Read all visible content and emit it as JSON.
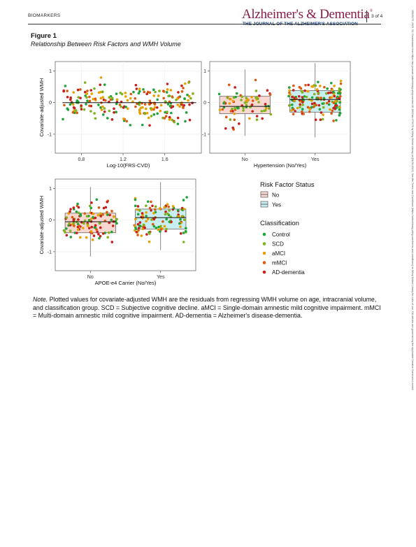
{
  "header": {
    "section": "BIOMARKERS",
    "journal": "Alzheimer's & Dementia",
    "journal_reg": "®",
    "journal_subtitle": "THE JOURNAL OF THE ALZHEIMER'S ASSOCIATION",
    "page": "3 of 4"
  },
  "figure": {
    "label": "Figure 1",
    "title": "Relationship Between Risk Factors and WMH Volume"
  },
  "note": {
    "prefix": "Note.",
    "text": " Plotted values for covariate-adjusted WMH are the residuals from regressing WMH volume on age, intracranial volume, and classification group. SCD = Subjective cognitive decline. aMCI = Single-domain amnestic mild cognitive impairment. mMCI = Multi-domain amnestic mild cognitive impairment. AD-dementia = Alzheimer's disease-dementia."
  },
  "side_note": "15525279, 2023, S2, Downloaded from https://alz-journals.onlinelibrary.wiley.com/doi/10.1002/alz.070476 by Wiley Online Library on [01/01/2024]. See the Terms and Conditions (https://onlinelibrary.wiley.com/terms-and-conditions) on Wiley Online Library for rules of use; OA articles are governed by the applicable Creative Commons License",
  "colors": {
    "Control": "#1fa33a",
    "SCD": "#7fb21c",
    "aMCI": "#e8a000",
    "mMCI": "#d95a10",
    "AD-dementia": "#c81e1e",
    "No": "#f8d7d0",
    "Yes": "#c9eef2"
  },
  "chart_data": [
    {
      "type": "scatter",
      "panel": "Log-10(FRS-CVD)",
      "xlabel": "Log-10(FRS-CVD)",
      "ylabel": "Covariate-adjusted WMH",
      "xlim": [
        0.55,
        1.95
      ],
      "ylim": [
        -1.6,
        1.3
      ],
      "xticks": [
        "0.8",
        "1.2",
        "1.6"
      ],
      "yticks": [
        "1",
        "0",
        "-1"
      ],
      "fit_line": {
        "intercept": 0.0,
        "slope": 0.0
      },
      "grid": true,
      "n_points": 240
    },
    {
      "type": "box",
      "panel": "Hypertension",
      "xlabel": "Hypertension (No/Yes)",
      "ylabel": "",
      "categories": [
        "No",
        "Yes"
      ],
      "ylim": [
        -1.6,
        1.3
      ],
      "yticks": [
        "1",
        "0",
        "-1"
      ],
      "boxes": [
        {
          "name": "No",
          "q1": -0.35,
          "median": -0.12,
          "q3": 0.2,
          "low": -1.05,
          "high": 1.05,
          "n": 80
        },
        {
          "name": "Yes",
          "q1": -0.3,
          "median": 0.1,
          "q3": 0.38,
          "low": -1.1,
          "high": 1.25,
          "n": 160
        }
      ]
    },
    {
      "type": "box",
      "panel": "APOE-e4 Carrier",
      "xlabel": "APOE-e4 Carrier (No/Yes)",
      "ylabel": "Covariate-adjusted WMH",
      "categories": [
        "No",
        "Yes"
      ],
      "ylim": [
        -1.6,
        1.3
      ],
      "yticks": [
        "1",
        "0",
        "-1"
      ],
      "boxes": [
        {
          "name": "No",
          "q1": -0.4,
          "median": -0.05,
          "q3": 0.22,
          "low": -1.15,
          "high": 1.05,
          "n": 120
        },
        {
          "name": "Yes",
          "q1": -0.28,
          "median": 0.08,
          "q3": 0.35,
          "low": -0.95,
          "high": 1.2,
          "n": 120
        }
      ]
    }
  ],
  "legend": {
    "risk_title": "Risk Factor Status",
    "risk_items": [
      "No",
      "Yes"
    ],
    "class_title": "Classification",
    "class_items": [
      "Control",
      "SCD",
      "aMCI",
      "mMCI",
      "AD-dementia"
    ]
  }
}
